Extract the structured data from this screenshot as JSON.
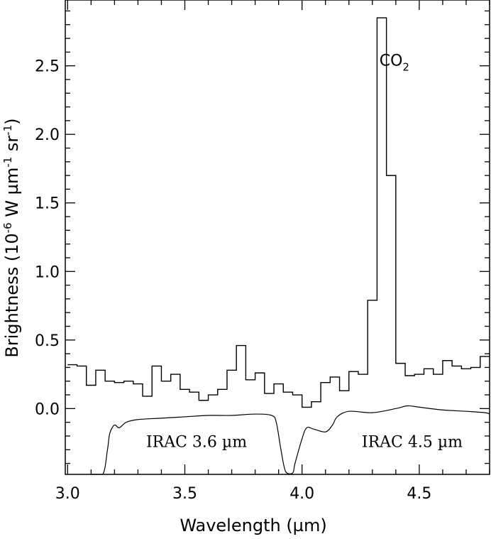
{
  "chart_data": {
    "type": "line",
    "xlabel": "Wavelength (µm)",
    "ylabel_main": "Brightness (10",
    "ylabel_exp1": "-6",
    "ylabel_mid1": " W µm",
    "ylabel_exp2": "-1",
    "ylabel_mid2": " sr",
    "ylabel_exp3": "-1",
    "ylabel_end": ")",
    "xlim": [
      2.99,
      4.8
    ],
    "ylim": [
      -0.48,
      2.98
    ],
    "xticks": [
      3.0,
      3.5,
      4.0,
      4.5
    ],
    "xtick_labels": [
      "3.0",
      "3.5",
      "4.0",
      "4.5"
    ],
    "yticks": [
      0.0,
      0.5,
      1.0,
      1.5,
      2.0,
      2.5
    ],
    "ytick_labels": [
      "0.0",
      "0.5",
      "1.0",
      "1.5",
      "2.0",
      "2.5"
    ],
    "grid": false,
    "series": [
      {
        "kind": "step",
        "bin_edges": [
          3.0,
          3.04,
          3.08,
          3.12,
          3.16,
          3.2,
          3.24,
          3.28,
          3.32,
          3.36,
          3.4,
          3.44,
          3.48,
          3.52,
          3.56,
          3.6,
          3.64,
          3.68,
          3.72,
          3.76,
          3.8,
          3.84,
          3.88,
          3.92,
          3.96,
          4.0,
          4.04,
          4.08,
          4.12,
          4.16,
          4.2,
          4.24,
          4.28,
          4.32,
          4.36,
          4.4,
          4.44,
          4.48,
          4.52,
          4.56,
          4.6,
          4.64,
          4.68,
          4.72,
          4.76
        ],
        "values": [
          0.32,
          0.31,
          0.17,
          0.28,
          0.2,
          0.19,
          0.2,
          0.18,
          0.09,
          0.31,
          0.2,
          0.25,
          0.14,
          0.12,
          0.06,
          0.1,
          0.14,
          0.28,
          0.46,
          0.21,
          0.26,
          0.11,
          0.18,
          0.12,
          0.1,
          0.01,
          0.05,
          0.19,
          0.23,
          0.13,
          0.27,
          0.25,
          0.79,
          2.85,
          1.7,
          0.33,
          0.24,
          0.25,
          0.29,
          0.25,
          0.35,
          0.31,
          0.29,
          0.3,
          0.38
        ],
        "x_end": 4.8
      },
      {
        "kind": "curve",
        "x": [
          3.1,
          3.15,
          3.17,
          3.18,
          3.2,
          3.22,
          3.25,
          3.3,
          3.4,
          3.5,
          3.6,
          3.7,
          3.8,
          3.87,
          3.89,
          3.91,
          3.93,
          3.96,
          3.97,
          4.0,
          4.02,
          4.05,
          4.1,
          4.13,
          4.15,
          4.2,
          4.3,
          4.4,
          4.45,
          4.5,
          4.6,
          4.7,
          4.78,
          4.8
        ],
        "y": [
          -0.55,
          -0.49,
          -0.3,
          -0.18,
          -0.12,
          -0.14,
          -0.1,
          -0.08,
          -0.07,
          -0.06,
          -0.05,
          -0.05,
          -0.04,
          -0.05,
          -0.1,
          -0.3,
          -0.46,
          -0.47,
          -0.4,
          -0.22,
          -0.14,
          -0.15,
          -0.17,
          -0.12,
          -0.06,
          -0.02,
          -0.03,
          0.0,
          0.02,
          0.01,
          -0.01,
          -0.02,
          -0.03,
          -0.04
        ]
      }
    ],
    "annotations": [
      {
        "text": "CO",
        "sub": "2",
        "x": 4.33,
        "y": 2.5
      },
      {
        "text": "IRAC 3.6 µm",
        "x": 3.55,
        "y": -0.28
      },
      {
        "text": "IRAC 4.5 µm",
        "x": 4.47,
        "y": -0.28
      }
    ]
  }
}
